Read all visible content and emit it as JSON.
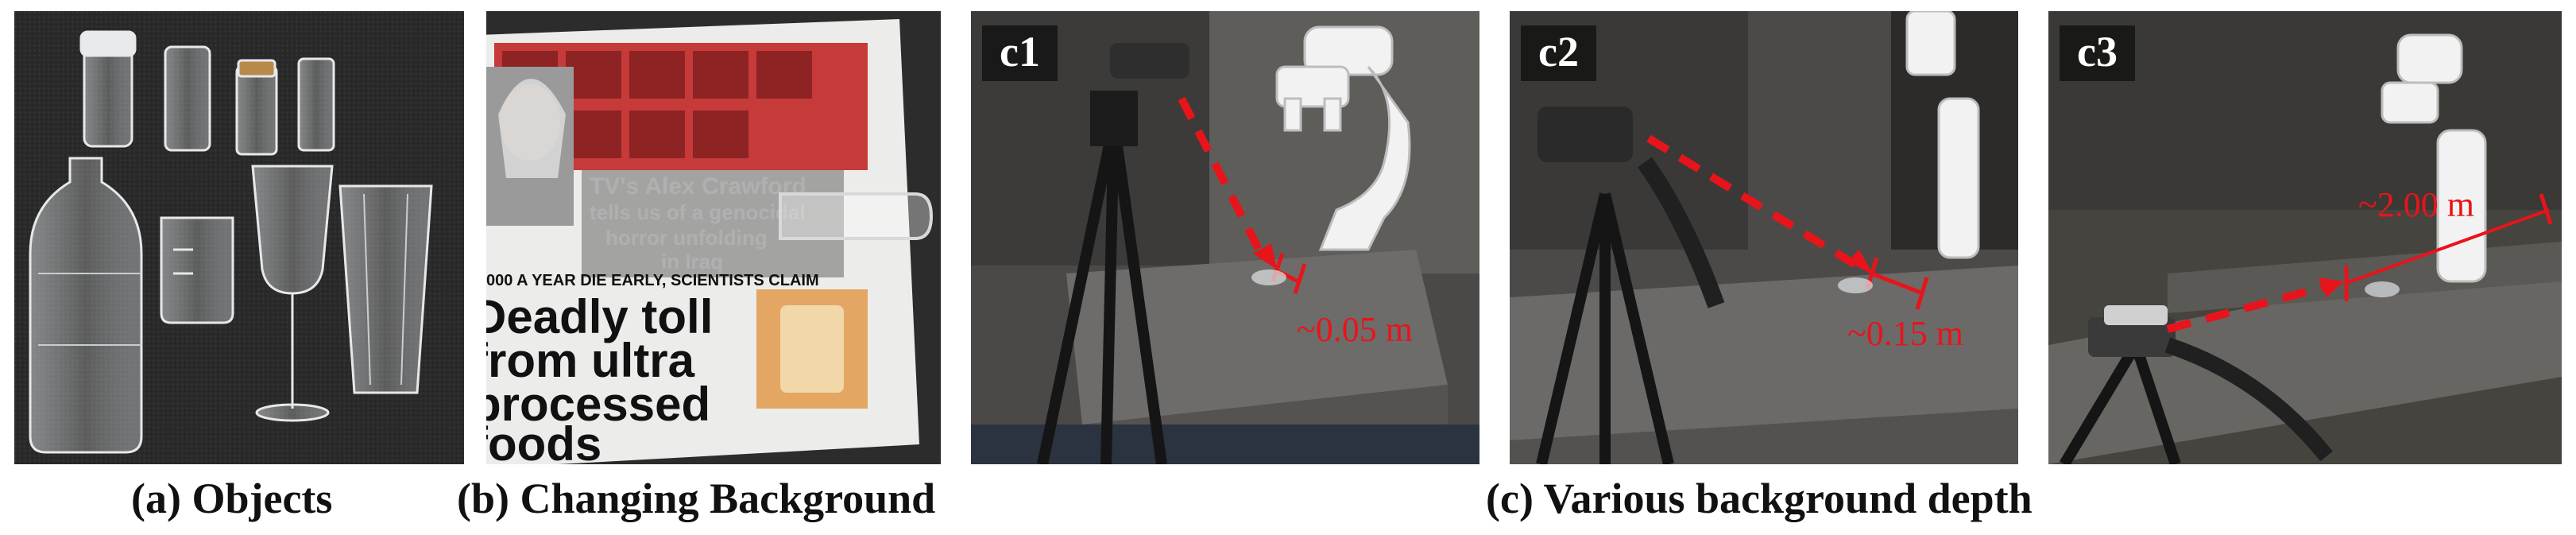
{
  "panels": {
    "c1": {
      "tag": "c1",
      "distance_label": "~0.05 m"
    },
    "c2": {
      "tag": "c2",
      "distance_label": "~0.15 m"
    },
    "c3": {
      "tag": "c3",
      "distance_label": "~2.00 m"
    }
  },
  "newspaper": {
    "headline_lines": [
      "Deadly toll",
      "from ultra",
      "processed",
      "foods"
    ],
    "strap": "000 A YEAR DIE EARLY, SCIENTISTS CLAIM",
    "quote_lines": [
      "TV's Alex Crawford",
      "tells us of a genocidal",
      "horror unfolding",
      "in Iraq"
    ]
  },
  "captions": {
    "a": "(a) Objects",
    "b": "(b) Changing Background",
    "c": "(c) Various background depth"
  },
  "colors": {
    "arrow": "#e8141b",
    "tag_bg": "#141414"
  }
}
